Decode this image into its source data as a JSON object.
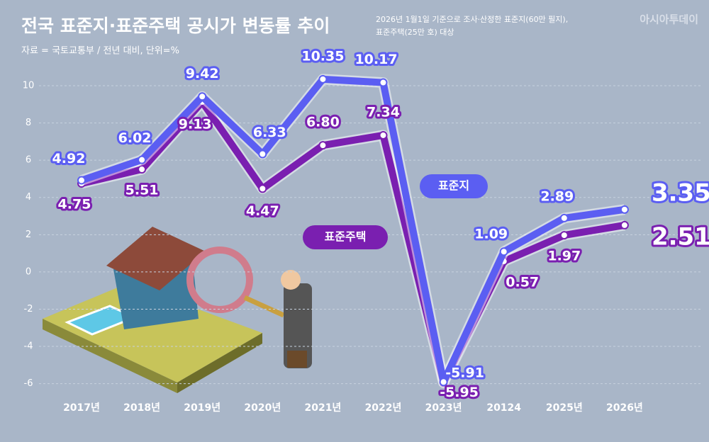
{
  "title": "전국 표준지·표준주택 공시가 변동률 추이",
  "subtitle": "자료 = 국토교통부 / 전년 대비, 단위=%",
  "note": [
    "2026년 1월1일 기준으로 조사·산정한 표준지(60만 필지),",
    "표준주택(25만 호) 대상"
  ],
  "logo": "아시아투데이",
  "chart_data": {
    "type": "line",
    "categories": [
      "2017년",
      "2018년",
      "2019년",
      "2020년",
      "2021년",
      "2022년",
      "2023년",
      "20124",
      "2025년",
      "2026년"
    ],
    "series": [
      {
        "name": "표준지",
        "color": "#5b5ef2",
        "values": [
          4.92,
          6.02,
          9.42,
          6.33,
          10.35,
          10.17,
          -5.91,
          1.09,
          2.89,
          3.35
        ]
      },
      {
        "name": "표준주택",
        "color": "#7a1fb0",
        "values": [
          4.75,
          5.51,
          9.13,
          4.47,
          6.8,
          7.34,
          -5.95,
          0.57,
          1.97,
          2.51
        ],
        "value_labels": [
          "4.75",
          "5.51",
          "9.13",
          "4.47",
          "6.80",
          "7.34",
          "-5.95",
          "0.57",
          "1.97",
          "2.51"
        ]
      }
    ],
    "ylim": [
      -6.7,
      10.8
    ],
    "yticks": [
      -6,
      -4,
      -2,
      0,
      2,
      4,
      6,
      8,
      10
    ],
    "grid": true
  }
}
